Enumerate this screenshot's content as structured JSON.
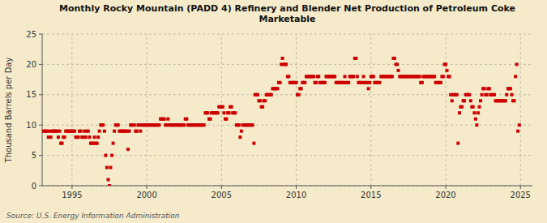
{
  "chart_data": {
    "type": "scatter",
    "title": "Monthly Rocky Mountain (PADD 4) Refinery and Blender Net Production of Petroleum Coke\nMarketable",
    "ylabel": "Thousand Barrels per Day",
    "annotations": [
      "Source: U.S. Energy Information Administration"
    ],
    "color": "#CC0000",
    "marker": "square",
    "grid": true,
    "xlim": [
      1993.0,
      2025.8
    ],
    "xticks": [
      1995,
      2000,
      2005,
      2010,
      2015,
      2020,
      2025
    ],
    "ylim": [
      0,
      25
    ],
    "yticks": [
      0,
      5,
      10,
      15,
      20,
      25
    ],
    "x": [
      1993.08,
      1993.17,
      1993.25,
      1993.33,
      1993.42,
      1993.5,
      1993.58,
      1993.67,
      1993.75,
      1993.83,
      1993.92,
      1994.0,
      1994.08,
      1994.17,
      1994.25,
      1994.33,
      1994.42,
      1994.5,
      1994.58,
      1994.67,
      1994.75,
      1994.83,
      1994.92,
      1995.0,
      1995.08,
      1995.17,
      1995.25,
      1995.33,
      1995.42,
      1995.5,
      1995.58,
      1995.67,
      1995.75,
      1995.83,
      1995.92,
      1996.0,
      1996.08,
      1996.17,
      1996.25,
      1996.33,
      1996.42,
      1996.5,
      1996.58,
      1996.67,
      1996.75,
      1996.83,
      1996.92,
      1997.0,
      1997.08,
      1997.17,
      1997.25,
      1997.33,
      1997.42,
      1997.5,
      1997.58,
      1997.67,
      1997.75,
      1997.83,
      1997.92,
      1998.0,
      1998.08,
      1998.17,
      1998.25,
      1998.33,
      1998.42,
      1998.5,
      1998.58,
      1998.67,
      1998.75,
      1998.83,
      1998.92,
      1999.0,
      1999.08,
      1999.17,
      1999.25,
      1999.33,
      1999.42,
      1999.5,
      1999.58,
      1999.67,
      1999.75,
      1999.83,
      1999.92,
      2000.0,
      2000.08,
      2000.17,
      2000.25,
      2000.33,
      2000.42,
      2000.5,
      2000.58,
      2000.67,
      2000.75,
      2000.83,
      2000.92,
      2001.0,
      2001.08,
      2001.17,
      2001.25,
      2001.33,
      2001.42,
      2001.5,
      2001.58,
      2001.67,
      2001.75,
      2001.83,
      2001.92,
      2002.0,
      2002.08,
      2002.17,
      2002.25,
      2002.33,
      2002.42,
      2002.5,
      2002.58,
      2002.67,
      2002.75,
      2002.83,
      2002.92,
      2003.0,
      2003.08,
      2003.17,
      2003.25,
      2003.33,
      2003.42,
      2003.5,
      2003.58,
      2003.67,
      2003.75,
      2003.83,
      2003.92,
      2004.0,
      2004.08,
      2004.17,
      2004.25,
      2004.33,
      2004.42,
      2004.5,
      2004.58,
      2004.67,
      2004.75,
      2004.83,
      2004.92,
      2005.0,
      2005.08,
      2005.17,
      2005.25,
      2005.33,
      2005.42,
      2005.5,
      2005.58,
      2005.67,
      2005.75,
      2005.83,
      2005.92,
      2006.0,
      2006.08,
      2006.17,
      2006.25,
      2006.33,
      2006.42,
      2006.5,
      2006.58,
      2006.67,
      2006.75,
      2006.83,
      2006.92,
      2007.0,
      2007.08,
      2007.17,
      2007.25,
      2007.33,
      2007.42,
      2007.5,
      2007.58,
      2007.67,
      2007.75,
      2007.83,
      2007.92,
      2008.0,
      2008.08,
      2008.17,
      2008.25,
      2008.33,
      2008.42,
      2008.5,
      2008.58,
      2008.67,
      2008.75,
      2008.83,
      2008.92,
      2009.0,
      2009.08,
      2009.17,
      2009.25,
      2009.33,
      2009.42,
      2009.5,
      2009.58,
      2009.67,
      2009.75,
      2009.83,
      2009.92,
      2010.0,
      2010.08,
      2010.17,
      2010.25,
      2010.33,
      2010.42,
      2010.5,
      2010.58,
      2010.67,
      2010.75,
      2010.83,
      2010.92,
      2011.0,
      2011.08,
      2011.17,
      2011.25,
      2011.33,
      2011.42,
      2011.5,
      2011.58,
      2011.67,
      2011.75,
      2011.83,
      2011.92,
      2012.0,
      2012.08,
      2012.17,
      2012.25,
      2012.33,
      2012.42,
      2012.5,
      2012.58,
      2012.67,
      2012.75,
      2012.83,
      2012.92,
      2013.0,
      2013.08,
      2013.17,
      2013.25,
      2013.33,
      2013.42,
      2013.5,
      2013.58,
      2013.67,
      2013.75,
      2013.83,
      2013.92,
      2014.0,
      2014.08,
      2014.17,
      2014.25,
      2014.33,
      2014.42,
      2014.5,
      2014.58,
      2014.67,
      2014.75,
      2014.83,
      2014.92,
      2015.0,
      2015.08,
      2015.17,
      2015.25,
      2015.33,
      2015.42,
      2015.5,
      2015.58,
      2015.67,
      2015.75,
      2015.83,
      2015.92,
      2016.0,
      2016.08,
      2016.17,
      2016.25,
      2016.33,
      2016.42,
      2016.5,
      2016.58,
      2016.67,
      2016.75,
      2016.83,
      2016.92,
      2017.0,
      2017.08,
      2017.17,
      2017.25,
      2017.33,
      2017.42,
      2017.5,
      2017.58,
      2017.67,
      2017.75,
      2017.83,
      2017.92,
      2018.0,
      2018.08,
      2018.17,
      2018.25,
      2018.33,
      2018.42,
      2018.5,
      2018.58,
      2018.67,
      2018.75,
      2018.83,
      2018.92,
      2019.0,
      2019.08,
      2019.17,
      2019.25,
      2019.33,
      2019.42,
      2019.5,
      2019.58,
      2019.67,
      2019.75,
      2019.83,
      2019.92,
      2020.0,
      2020.08,
      2020.17,
      2020.25,
      2020.33,
      2020.42,
      2020.5,
      2020.58,
      2020.67,
      2020.75,
      2020.83,
      2020.92,
      2021.0,
      2021.08,
      2021.17,
      2021.25,
      2021.33,
      2021.42,
      2021.5,
      2021.58,
      2021.67,
      2021.75,
      2021.83,
      2021.92,
      2022.0,
      2022.08,
      2022.17,
      2022.25,
      2022.33,
      2022.42,
      2022.5,
      2022.58,
      2022.67,
      2022.75,
      2022.83,
      2022.92,
      2023.0,
      2023.08,
      2023.17,
      2023.25,
      2023.33,
      2023.42,
      2023.5,
      2023.58,
      2023.67,
      2023.75,
      2023.83,
      2023.92,
      2024.0,
      2024.08,
      2024.17,
      2024.25,
      2024.33,
      2024.42,
      2024.5,
      2024.58,
      2024.67,
      2024.75,
      2024.83,
      2024.92
    ],
    "values": [
      9,
      9,
      9,
      9,
      8,
      9,
      8,
      9,
      9,
      9,
      9,
      9,
      8,
      9,
      7,
      7,
      8,
      8,
      9,
      9,
      9,
      9,
      9,
      9,
      9,
      9,
      8,
      8,
      8,
      9,
      9,
      8,
      8,
      9,
      8,
      9,
      9,
      8,
      7,
      7,
      7,
      8,
      7,
      7,
      8,
      9,
      10,
      10,
      10,
      9,
      5,
      3,
      1,
      0,
      3,
      5,
      7,
      9,
      10,
      10,
      10,
      9,
      9,
      9,
      9,
      9,
      9,
      9,
      6,
      9,
      10,
      10,
      10,
      10,
      9,
      9,
      10,
      10,
      9,
      10,
      10,
      10,
      10,
      10,
      10,
      10,
      10,
      10,
      10,
      10,
      10,
      10,
      10,
      10,
      11,
      11,
      11,
      11,
      10,
      10,
      11,
      10,
      10,
      10,
      10,
      10,
      10,
      10,
      10,
      10,
      10,
      10,
      10,
      10,
      11,
      11,
      10,
      10,
      10,
      10,
      10,
      10,
      10,
      10,
      10,
      10,
      10,
      10,
      10,
      10,
      12,
      12,
      12,
      11,
      11,
      12,
      12,
      12,
      12,
      12,
      12,
      13,
      13,
      13,
      13,
      12,
      11,
      11,
      12,
      12,
      13,
      13,
      12,
      12,
      12,
      10,
      10,
      10,
      8,
      9,
      10,
      10,
      10,
      10,
      10,
      10,
      10,
      10,
      10,
      7,
      15,
      15,
      15,
      14,
      14,
      13,
      13,
      14,
      14,
      15,
      15,
      15,
      15,
      15,
      16,
      16,
      16,
      16,
      16,
      17,
      17,
      20,
      21,
      20,
      20,
      20,
      18,
      18,
      17,
      17,
      17,
      17,
      17,
      17,
      15,
      15,
      16,
      16,
      17,
      17,
      17,
      18,
      18,
      18,
      18,
      18,
      18,
      18,
      17,
      17,
      18,
      18,
      17,
      17,
      17,
      17,
      17,
      18,
      18,
      18,
      18,
      18,
      18,
      18,
      18,
      17,
      17,
      17,
      17,
      17,
      17,
      17,
      18,
      17,
      17,
      17,
      18,
      18,
      18,
      18,
      21,
      21,
      18,
      17,
      17,
      17,
      17,
      18,
      17,
      17,
      17,
      16,
      17,
      18,
      18,
      18,
      17,
      17,
      17,
      17,
      17,
      18,
      18,
      18,
      18,
      18,
      18,
      18,
      18,
      18,
      18,
      21,
      21,
      20,
      20,
      19,
      18,
      18,
      18,
      18,
      18,
      18,
      18,
      18,
      18,
      18,
      18,
      18,
      18,
      18,
      18,
      18,
      18,
      17,
      17,
      18,
      18,
      18,
      18,
      18,
      18,
      18,
      18,
      18,
      18,
      17,
      17,
      17,
      17,
      17,
      18,
      18,
      20,
      20,
      19,
      18,
      18,
      15,
      14,
      15,
      15,
      15,
      15,
      7,
      12,
      13,
      13,
      14,
      14,
      15,
      15,
      15,
      15,
      14,
      13,
      13,
      12,
      11,
      10,
      12,
      13,
      14,
      15,
      16,
      16,
      15,
      15,
      16,
      16,
      15,
      15,
      15,
      15,
      14,
      14,
      14,
      14,
      14,
      14,
      14,
      14,
      14,
      15,
      16,
      16,
      16,
      15,
      14,
      14,
      18,
      20,
      9,
      10
    ]
  }
}
